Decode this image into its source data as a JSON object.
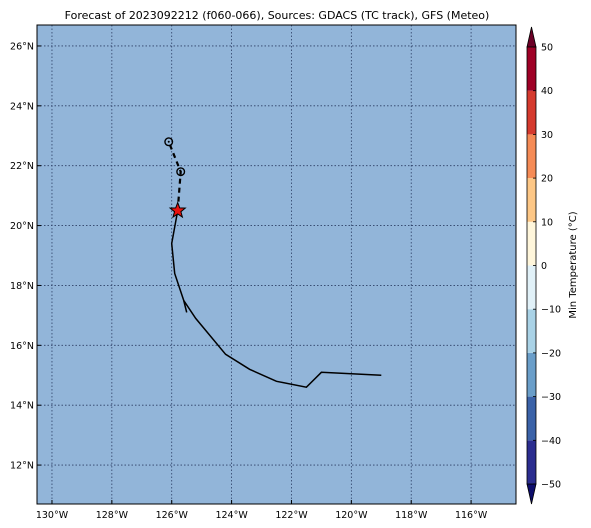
{
  "title": "Forecast of 2023092212 (f060-066), Sources: GDACS (TC track), GFS (Meteo)",
  "map": {
    "lon_range": [
      -130.5,
      -114.5
    ],
    "lat_range": [
      10.7,
      26.7
    ],
    "ocean_color": "#92b5d9",
    "grid_style": "dotted",
    "lon_ticks": [
      {
        "value": -130,
        "label": "130°W"
      },
      {
        "value": -128,
        "label": "128°W"
      },
      {
        "value": -126,
        "label": "126°W"
      },
      {
        "value": -124,
        "label": "124°W"
      },
      {
        "value": -122,
        "label": "122°W"
      },
      {
        "value": -120,
        "label": "120°W"
      },
      {
        "value": -118,
        "label": "118°W"
      },
      {
        "value": -116,
        "label": "116°W"
      }
    ],
    "lat_ticks": [
      {
        "value": 12,
        "label": "12°N"
      },
      {
        "value": 14,
        "label": "14°N"
      },
      {
        "value": 16,
        "label": "16°N"
      },
      {
        "value": 18,
        "label": "18°N"
      },
      {
        "value": 20,
        "label": "20°N"
      },
      {
        "value": 22,
        "label": "22°N"
      },
      {
        "value": 24,
        "label": "24°N"
      },
      {
        "value": 26,
        "label": "26°N"
      }
    ],
    "past_track": [
      [
        -119.0,
        15.0
      ],
      [
        -121.0,
        15.1
      ],
      [
        -121.5,
        14.6
      ],
      [
        -122.5,
        14.8
      ],
      [
        -123.4,
        15.2
      ],
      [
        -124.2,
        15.7
      ],
      [
        -125.2,
        16.9
      ],
      [
        -125.6,
        17.5
      ],
      [
        -125.9,
        18.4
      ],
      [
        -126.0,
        19.4
      ],
      [
        -125.8,
        20.5
      ]
    ],
    "past_track_spur": [
      [
        -125.6,
        17.5
      ],
      [
        -125.5,
        17.1
      ]
    ],
    "forecast_track": [
      [
        -125.8,
        20.5
      ],
      [
        -125.7,
        21.8
      ],
      [
        -126.1,
        22.8
      ]
    ],
    "forecast_points": [
      [
        -125.7,
        21.8
      ],
      [
        -126.1,
        22.8
      ]
    ],
    "current_position": [
      -125.8,
      20.5
    ],
    "current_marker_color": "#e8120f"
  },
  "colorbar": {
    "label": "Min Temperature (°C)",
    "ticks": [
      50,
      40,
      30,
      20,
      10,
      0,
      -10,
      -20,
      -30,
      -40,
      -50
    ],
    "tick_labels": [
      "50",
      "40",
      "30",
      "20",
      "10",
      "0",
      "−10",
      "−20",
      "−30",
      "−40",
      "−50"
    ],
    "levels": [
      -50,
      -40,
      -30,
      -20,
      -10,
      0,
      10,
      20,
      30,
      40,
      50
    ],
    "colors": [
      "#2b2d8f",
      "#3b62a8",
      "#6a9ec9",
      "#a9d2e6",
      "#e1f1f8",
      "#fff6db",
      "#fdc786",
      "#f58b56",
      "#d53a2e",
      "#9e0026"
    ],
    "under_color": "#0d0d6b",
    "over_color": "#6b0026"
  }
}
